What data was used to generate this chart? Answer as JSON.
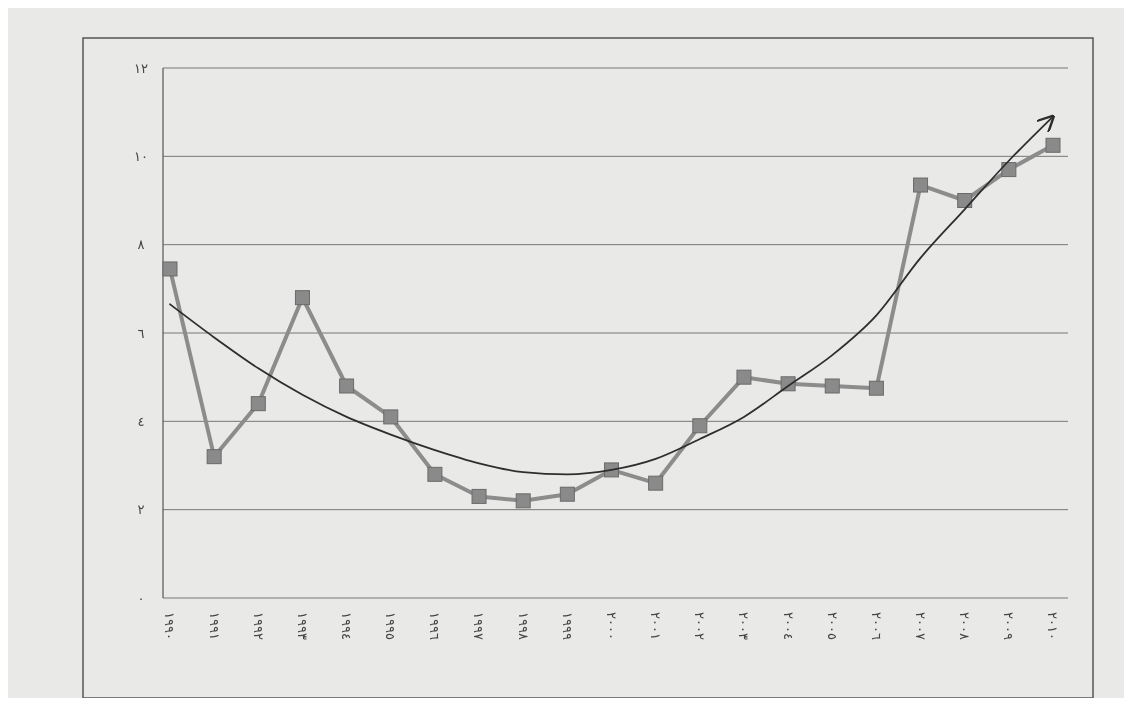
{
  "chart_data": {
    "type": "line",
    "categories": [
      "١٩٩٠",
      "١٩٩١",
      "١٩٩٢",
      "١٩٩٣",
      "١٩٩٤",
      "١٩٩٥",
      "١٩٩٦",
      "١٩٩٧",
      "١٩٩٨",
      "١٩٩٩",
      "٢٠٠٠",
      "٢٠٠١",
      "٢٠٠٢",
      "٢٠٠٣",
      "٢٠٠٤",
      "٢٠٠٥",
      "٢٠٠٦",
      "٢٠٠٧",
      "٢٠٠٨",
      "٢٠٠٩",
      "٢٠١٠"
    ],
    "series": [
      {
        "color": "#8c8c8c",
        "marker": "square",
        "values": [
          7.45,
          3.2,
          4.4,
          6.8,
          4.8,
          4.1,
          2.8,
          2.3,
          2.2,
          2.35,
          2.9,
          2.6,
          3.9,
          5.0,
          4.85,
          4.8,
          4.75,
          9.35,
          9.0,
          9.7,
          10.25
        ]
      },
      {
        "color": "#2e2e2e",
        "marker": "none",
        "values": [
          6.65,
          5.9,
          5.2,
          4.6,
          4.1,
          3.7,
          3.35,
          3.05,
          2.85,
          2.8,
          2.9,
          3.15,
          3.6,
          4.1,
          4.8,
          5.5,
          6.4,
          7.7,
          8.8,
          9.9,
          10.9
        ]
      }
    ],
    "ylim": [
      0,
      12
    ],
    "yticks": [
      {
        "value": 0,
        "label": "٠"
      },
      {
        "value": 2,
        "label": "٢"
      },
      {
        "value": 4,
        "label": "٤"
      },
      {
        "value": 6,
        "label": "٦"
      },
      {
        "value": 8,
        "label": "٨"
      },
      {
        "value": 10,
        "label": "١٠"
      },
      {
        "value": 12,
        "label": "١٢"
      }
    ],
    "grid": "y"
  }
}
